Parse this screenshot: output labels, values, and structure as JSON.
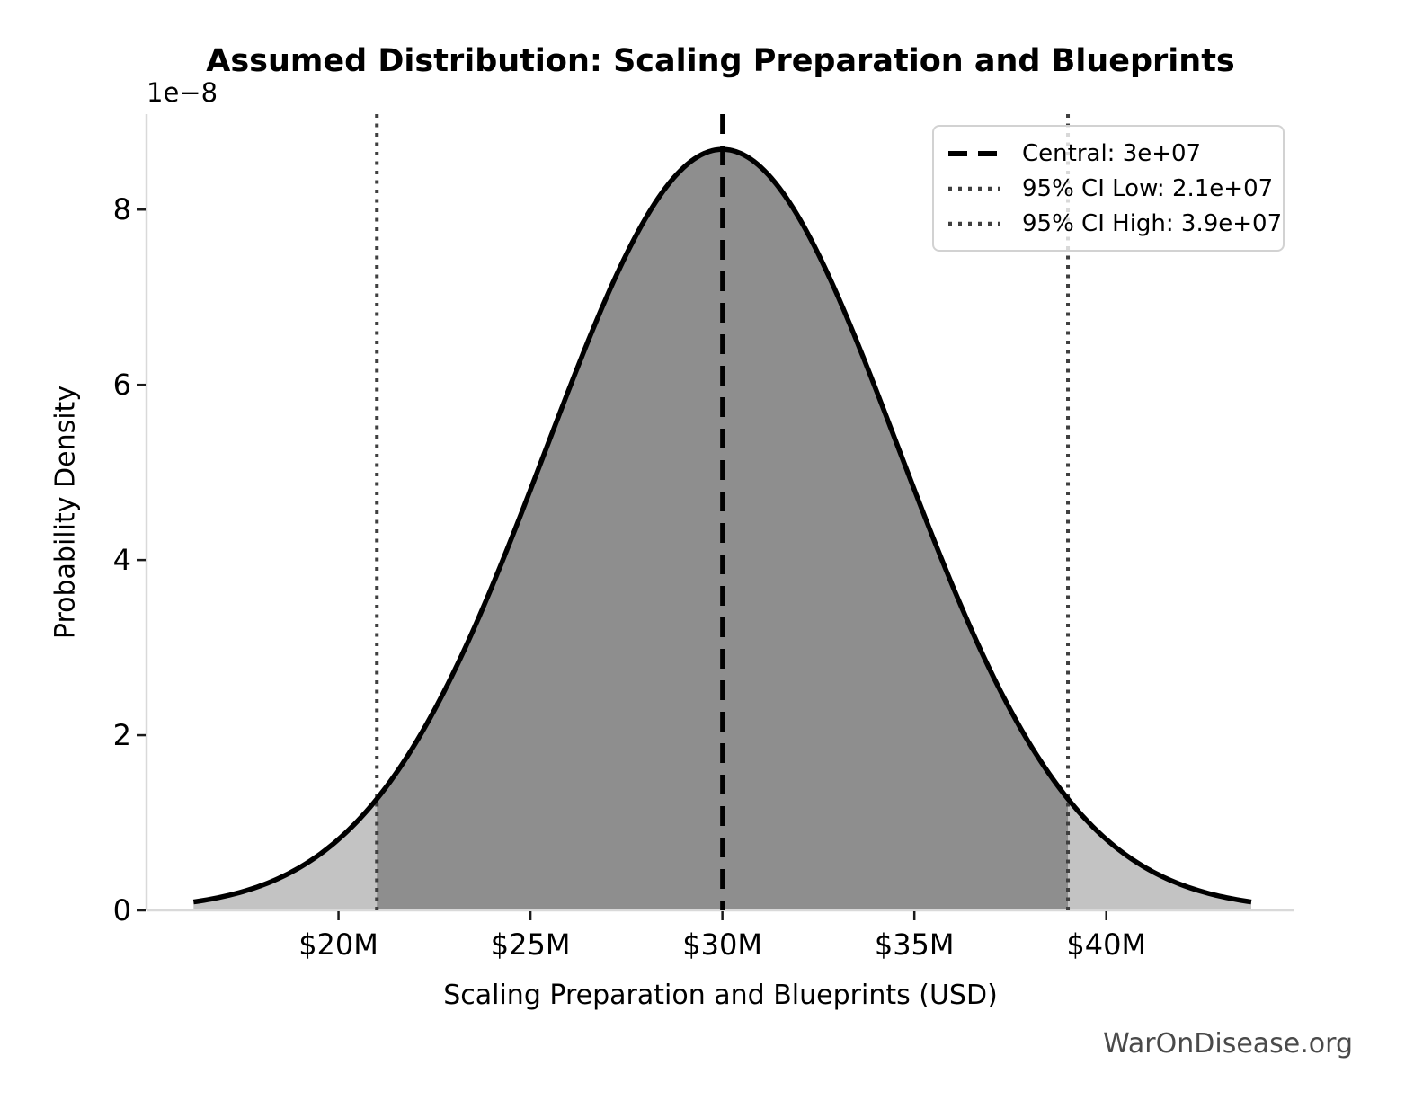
{
  "watermark": "WarOnDisease.org",
  "chart_data": {
    "type": "area",
    "subtype": "normal-distribution-pdf",
    "title": "Assumed Distribution: Scaling Preparation and Blueprints",
    "xlabel": "Scaling Preparation and Blueprints (USD)",
    "ylabel": "Probability Density",
    "y_scale_offset_label": "1e−8",
    "distribution": {
      "shape": "normal",
      "mean": 30000000,
      "sigma": 4591837,
      "peak_density": 8.69e-08,
      "curve_span_sigmas": 3
    },
    "central_line": {
      "value": 30000000,
      "style": "dashed",
      "label": "Central: 3e+07"
    },
    "ci_low_line": {
      "value": 21000000,
      "style": "dotted",
      "label": "95% CI Low: 2.1e+07"
    },
    "ci_high_line": {
      "value": 39000000,
      "style": "dotted",
      "label": "95% CI High: 3.9e+07"
    },
    "x_ticks": [
      {
        "value": 20000000,
        "label": "$20M"
      },
      {
        "value": 25000000,
        "label": "$25M"
      },
      {
        "value": 30000000,
        "label": "$30M"
      },
      {
        "value": 35000000,
        "label": "$35M"
      },
      {
        "value": 40000000,
        "label": "$40M"
      }
    ],
    "y_ticks": [
      {
        "value": 0,
        "label": "0"
      },
      {
        "value": 2e-08,
        "label": "2"
      },
      {
        "value": 4e-08,
        "label": "4"
      },
      {
        "value": 6e-08,
        "label": "6"
      },
      {
        "value": 8e-08,
        "label": "8"
      }
    ],
    "xlim": [
      15000000,
      44900000
    ],
    "ylim": [
      0,
      9.09e-08
    ],
    "grid": false,
    "legend": {
      "position": "upper right",
      "entries": [
        {
          "style": "dashed",
          "color": "#000000",
          "label": "Central: 3e+07"
        },
        {
          "style": "dotted",
          "color": "#3f3f3f",
          "label": "95% CI Low: 2.1e+07"
        },
        {
          "style": "dotted",
          "color": "#3f3f3f",
          "label": "95% CI High: 3.9e+07"
        }
      ]
    },
    "colors": {
      "curve": "#000000",
      "tail_fill": "#c3c3c3",
      "ci_fill": "#8e8e8e",
      "central_line": "#000000",
      "ci_line": "#3f3f3f",
      "spine": "#d9d9d9",
      "tick": "#1a1a1a",
      "text": "#000000",
      "watermark": "#4a4a4a"
    }
  }
}
